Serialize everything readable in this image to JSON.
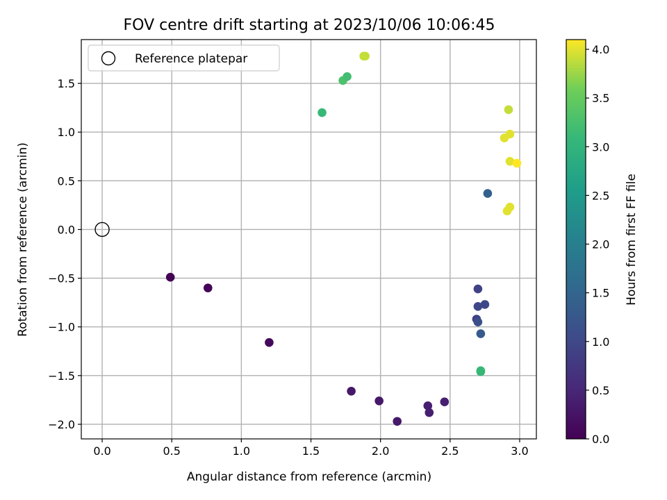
{
  "chart_data": {
    "type": "scatter",
    "title": "FOV centre drift starting at 2023/10/06 10:06:45",
    "xlabel": "Angular distance from reference (arcmin)",
    "ylabel": "Rotation from reference (arcmin)",
    "xlim": [
      -0.15,
      3.12
    ],
    "ylim": [
      -2.15,
      1.95
    ],
    "xticks": [
      0.0,
      0.5,
      1.0,
      1.5,
      2.0,
      2.5,
      3.0
    ],
    "xtick_labels": [
      "0.0",
      "0.5",
      "1.0",
      "1.5",
      "2.0",
      "2.5",
      "3.0"
    ],
    "yticks": [
      -2.0,
      -1.5,
      -1.0,
      -0.5,
      0.0,
      0.5,
      1.0,
      1.5
    ],
    "ytick_labels": [
      "−2.0",
      "−1.5",
      "−1.0",
      "−0.5",
      "0.0",
      "0.5",
      "1.0",
      "1.5"
    ],
    "grid": true,
    "legend": {
      "placement": "upper-left",
      "entries": [
        "Reference platepar"
      ]
    },
    "reference_point": {
      "x": 0.0,
      "y": 0.0,
      "label": "Reference platepar"
    },
    "colorbar": {
      "label": "Hours from first FF file",
      "colormap": "viridis",
      "range": [
        0.0,
        4.1
      ],
      "ticks": [
        0.0,
        0.5,
        1.0,
        1.5,
        2.0,
        2.5,
        3.0,
        3.5,
        4.0
      ],
      "tick_labels": [
        "0.0",
        "0.5",
        "1.0",
        "1.5",
        "2.0",
        "2.5",
        "3.0",
        "3.5",
        "4.0"
      ]
    },
    "points": [
      {
        "x": 0.49,
        "y": -0.49,
        "hours": 0.0
      },
      {
        "x": 0.76,
        "y": -0.6,
        "hours": 0.05
      },
      {
        "x": 1.2,
        "y": -1.16,
        "hours": 0.1
      },
      {
        "x": 1.79,
        "y": -1.66,
        "hours": 0.3
      },
      {
        "x": 1.99,
        "y": -1.76,
        "hours": 0.3
      },
      {
        "x": 2.12,
        "y": -1.97,
        "hours": 0.3
      },
      {
        "x": 2.34,
        "y": -1.81,
        "hours": 0.4
      },
      {
        "x": 2.35,
        "y": -1.88,
        "hours": 0.4
      },
      {
        "x": 2.46,
        "y": -1.77,
        "hours": 0.4
      },
      {
        "x": 2.7,
        "y": -0.61,
        "hours": 0.9
      },
      {
        "x": 2.7,
        "y": -0.79,
        "hours": 1.0
      },
      {
        "x": 2.75,
        "y": -0.77,
        "hours": 1.0
      },
      {
        "x": 2.69,
        "y": -0.92,
        "hours": 0.9
      },
      {
        "x": 2.7,
        "y": -0.95,
        "hours": 1.1
      },
      {
        "x": 2.72,
        "y": -1.07,
        "hours": 1.3
      },
      {
        "x": 2.77,
        "y": 0.37,
        "hours": 1.4
      },
      {
        "x": 2.72,
        "y": -1.46,
        "hours": 3.0
      },
      {
        "x": 2.72,
        "y": -1.45,
        "hours": 3.1
      },
      {
        "x": 1.58,
        "y": 1.2,
        "hours": 3.1
      },
      {
        "x": 1.73,
        "y": 1.53,
        "hours": 3.3
      },
      {
        "x": 1.76,
        "y": 1.57,
        "hours": 3.2
      },
      {
        "x": 1.88,
        "y": 1.78,
        "hours": 3.9
      },
      {
        "x": 1.89,
        "y": 1.78,
        "hours": 3.9
      },
      {
        "x": 2.92,
        "y": 1.23,
        "hours": 3.9
      },
      {
        "x": 2.93,
        "y": 0.98,
        "hours": 4.0
      },
      {
        "x": 2.89,
        "y": 0.94,
        "hours": 4.0
      },
      {
        "x": 2.93,
        "y": 0.7,
        "hours": 4.0
      },
      {
        "x": 2.98,
        "y": 0.68,
        "hours": 4.1
      },
      {
        "x": 2.93,
        "y": 0.23,
        "hours": 4.0
      },
      {
        "x": 2.91,
        "y": 0.19,
        "hours": 4.0
      }
    ]
  }
}
